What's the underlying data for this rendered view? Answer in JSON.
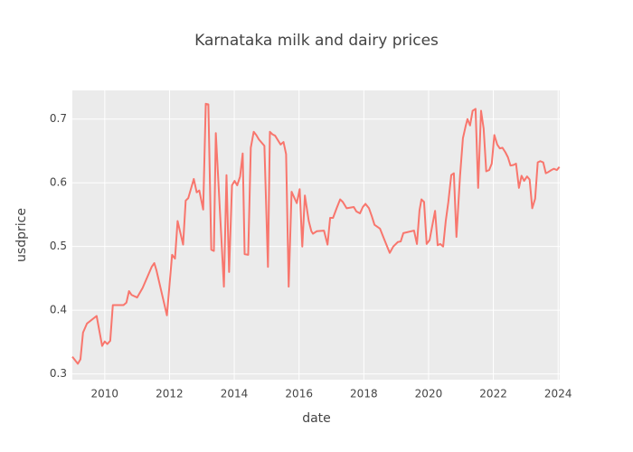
{
  "chart_data": {
    "type": "line",
    "title": "Karnataka milk and dairy prices",
    "x_label": "date",
    "y_label": "usdprice",
    "x": [
      2009.0,
      2009.17,
      2009.25,
      2009.33,
      2009.45,
      2009.75,
      2009.92,
      2010.0,
      2010.08,
      2010.17,
      2010.25,
      2010.58,
      2010.67,
      2010.75,
      2010.83,
      2011.0,
      2011.17,
      2011.45,
      2011.53,
      2011.6,
      2011.92,
      2012.08,
      2012.17,
      2012.25,
      2012.42,
      2012.5,
      2012.58,
      2012.75,
      2012.84,
      2012.92,
      2013.04,
      2013.12,
      2013.2,
      2013.29,
      2013.37,
      2013.43,
      2013.68,
      2013.76,
      2013.84,
      2013.93,
      2014.01,
      2014.09,
      2014.18,
      2014.26,
      2014.32,
      2014.43,
      2014.51,
      2014.6,
      2014.68,
      2014.76,
      2014.93,
      2015.04,
      2015.1,
      2015.18,
      2015.26,
      2015.43,
      2015.52,
      2015.6,
      2015.68,
      2015.77,
      2015.93,
      2016.02,
      2016.1,
      2016.18,
      2016.3,
      2016.38,
      2016.43,
      2016.55,
      2016.77,
      2016.88,
      2016.96,
      2017.05,
      2017.16,
      2017.27,
      2017.35,
      2017.47,
      2017.69,
      2017.77,
      2017.88,
      2017.97,
      2018.05,
      2018.16,
      2018.25,
      2018.33,
      2018.5,
      2018.64,
      2018.8,
      2018.91,
      2019.05,
      2019.14,
      2019.22,
      2019.55,
      2019.64,
      2019.72,
      2019.78,
      2019.86,
      2019.94,
      2020.03,
      2020.2,
      2020.28,
      2020.36,
      2020.45,
      2020.53,
      2020.61,
      2020.7,
      2020.78,
      2020.86,
      2020.97,
      2021.06,
      2021.14,
      2021.2,
      2021.28,
      2021.36,
      2021.45,
      2021.53,
      2021.62,
      2021.7,
      2021.78,
      2021.87,
      2021.95,
      2022.03,
      2022.12,
      2022.2,
      2022.28,
      2022.37,
      2022.45,
      2022.53,
      2022.62,
      2022.7,
      2022.79,
      2022.87,
      2022.95,
      2023.04,
      2023.12,
      2023.2,
      2023.29,
      2023.37,
      2023.45,
      2023.54,
      2023.62,
      2023.7,
      2023.79,
      2023.87,
      2023.96,
      2024.04
    ],
    "series": [
      {
        "color": "#f8766d",
        "values": [
          0.327,
          0.316,
          0.323,
          0.365,
          0.379,
          0.391,
          0.344,
          0.351,
          0.347,
          0.352,
          0.408,
          0.408,
          0.412,
          0.43,
          0.424,
          0.42,
          0.435,
          0.468,
          0.474,
          0.462,
          0.392,
          0.487,
          0.481,
          0.54,
          0.503,
          0.572,
          0.576,
          0.606,
          0.585,
          0.588,
          0.558,
          0.724,
          0.723,
          0.495,
          0.493,
          0.678,
          0.437,
          0.612,
          0.46,
          0.596,
          0.603,
          0.596,
          0.61,
          0.646,
          0.488,
          0.487,
          0.655,
          0.68,
          0.675,
          0.668,
          0.658,
          0.468,
          0.68,
          0.676,
          0.674,
          0.66,
          0.664,
          0.645,
          0.437,
          0.586,
          0.568,
          0.59,
          0.5,
          0.58,
          0.54,
          0.524,
          0.52,
          0.524,
          0.525,
          0.503,
          0.545,
          0.545,
          0.56,
          0.574,
          0.57,
          0.56,
          0.562,
          0.555,
          0.552,
          0.562,
          0.567,
          0.56,
          0.547,
          0.534,
          0.528,
          0.51,
          0.49,
          0.5,
          0.507,
          0.508,
          0.521,
          0.525,
          0.504,
          0.557,
          0.574,
          0.57,
          0.504,
          0.51,
          0.556,
          0.502,
          0.504,
          0.5,
          0.54,
          0.57,
          0.612,
          0.615,
          0.515,
          0.61,
          0.67,
          0.688,
          0.7,
          0.69,
          0.713,
          0.716,
          0.592,
          0.713,
          0.685,
          0.618,
          0.62,
          0.63,
          0.675,
          0.66,
          0.654,
          0.655,
          0.648,
          0.64,
          0.627,
          0.628,
          0.63,
          0.592,
          0.611,
          0.603,
          0.61,
          0.605,
          0.56,
          0.575,
          0.632,
          0.634,
          0.632,
          0.615,
          0.617,
          0.62,
          0.622,
          0.62,
          0.625
        ]
      }
    ],
    "xlim": [
      2009.0,
      2024.05
    ],
    "xticks": [
      2010,
      2012,
      2014,
      2016,
      2018,
      2020,
      2022,
      2024
    ],
    "ylim": [
      0.291,
      0.745
    ],
    "yticks": [
      0.3,
      0.4,
      0.5,
      0.6,
      0.7
    ],
    "grid": true
  }
}
